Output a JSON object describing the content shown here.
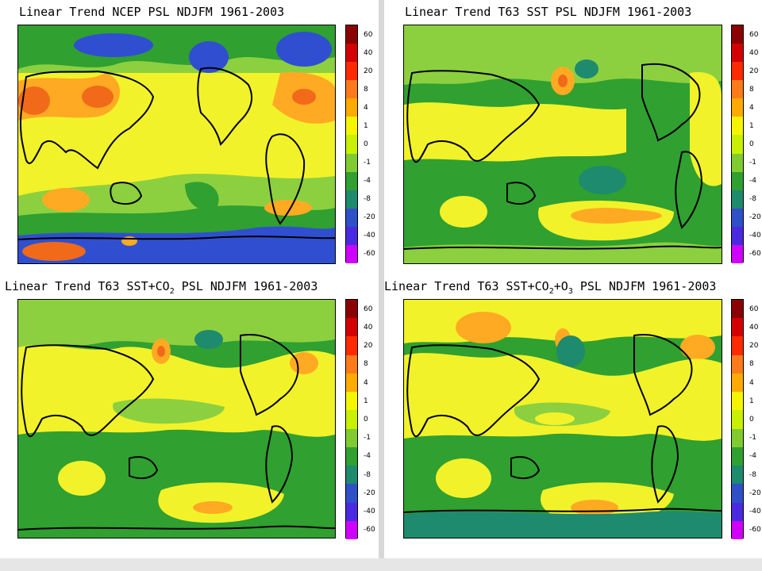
{
  "panels": [
    {
      "title_prefix": "Linear Trend NCEP PSL NDJFM 1961-2003",
      "title_sub": "",
      "title_suffix": "",
      "title_tail": "",
      "title_tail_sub": "",
      "title_end": ""
    },
    {
      "title_prefix": "Linear Trend T63 SST PSL NDJFM 1961-2003",
      "title_sub": "",
      "title_suffix": "",
      "title_tail": "",
      "title_tail_sub": "",
      "title_end": ""
    },
    {
      "title_prefix": "Linear Trend T63 SST+CO",
      "title_sub": "2",
      "title_suffix": " PSL NDJFM 1961-2003",
      "title_tail": "",
      "title_tail_sub": "",
      "title_end": ""
    },
    {
      "title_prefix": "Linear Trend T63 SST+CO",
      "title_sub": "2",
      "title_suffix": "+O",
      "title_tail": "",
      "title_tail_sub": "3",
      "title_end": " PSL NDJFM 1961-2003"
    }
  ],
  "colorbar": {
    "labels": [
      "60",
      "40",
      "20",
      "8",
      "4",
      "1",
      "0",
      "-1",
      "-4",
      "-8",
      "-20",
      "-40",
      "-60"
    ],
    "colors": [
      "#8b0000",
      "#d40000",
      "#ff2a00",
      "#ff7a1a",
      "#ffaa00",
      "#f5f500",
      "#c8f000",
      "#80cc30",
      "#30a030",
      "#1e8a6e",
      "#3050c8",
      "#4a2ae0",
      "#d000ff"
    ]
  },
  "palette": {
    "deep_blue": "#2f4fd0",
    "teal": "#1e8a6e",
    "green": "#30a030",
    "light_green": "#8cd040",
    "yellow": "#f2f22a",
    "orange": "#ffaa22",
    "red_orange": "#f06a1a"
  }
}
